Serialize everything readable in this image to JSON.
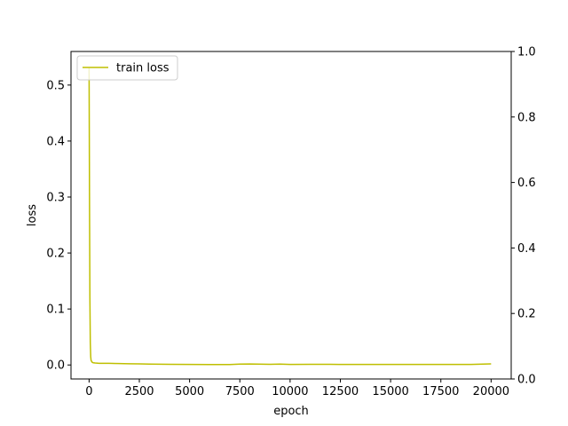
{
  "chart_data": {
    "type": "line",
    "title": "",
    "xlabel": "epoch",
    "ylabel": "loss",
    "xlim": [
      -900,
      21000
    ],
    "ylim": [
      -0.025,
      0.56
    ],
    "y2lim": [
      0,
      1.0
    ],
    "grid": false,
    "legend_placement": "upper left",
    "xticks": [
      0,
      2500,
      5000,
      7500,
      10000,
      12500,
      15000,
      17500,
      20000
    ],
    "xtick_labels": [
      "0",
      "2500",
      "5000",
      "7500",
      "10000",
      "12500",
      "15000",
      "17500",
      "20000"
    ],
    "yticks": [
      0.0,
      0.1,
      0.2,
      0.3,
      0.4,
      0.5
    ],
    "ytick_labels": [
      "0.0",
      "0.1",
      "0.2",
      "0.3",
      "0.4",
      "0.5"
    ],
    "y2ticks": [
      0.0,
      0.2,
      0.4,
      0.6,
      0.8,
      1.0
    ],
    "y2tick_labels": [
      "0.0",
      "0.2",
      "0.4",
      "0.6",
      "0.8",
      "1.0"
    ],
    "series": [
      {
        "name": "train loss",
        "color": "#bfbf00",
        "x": [
          0,
          20,
          40,
          60,
          80,
          100,
          150,
          200,
          300,
          500,
          800,
          1000,
          1500,
          2000,
          2500,
          3000,
          4000,
          5000,
          6000,
          7000,
          7500,
          8000,
          9000,
          9500,
          10000,
          11000,
          12000,
          13000,
          14000,
          15000,
          16000,
          17000,
          18000,
          19000,
          20000
        ],
        "y": [
          0.53,
          0.3,
          0.12,
          0.04,
          0.015,
          0.008,
          0.005,
          0.004,
          0.0035,
          0.003,
          0.003,
          0.003,
          0.0025,
          0.0022,
          0.002,
          0.0015,
          0.0012,
          0.001,
          0.0008,
          0.0008,
          0.0015,
          0.0018,
          0.0012,
          0.0016,
          0.001,
          0.0012,
          0.0011,
          0.001,
          0.001,
          0.001,
          0.0009,
          0.0009,
          0.0009,
          0.0009,
          0.002
        ]
      }
    ]
  }
}
